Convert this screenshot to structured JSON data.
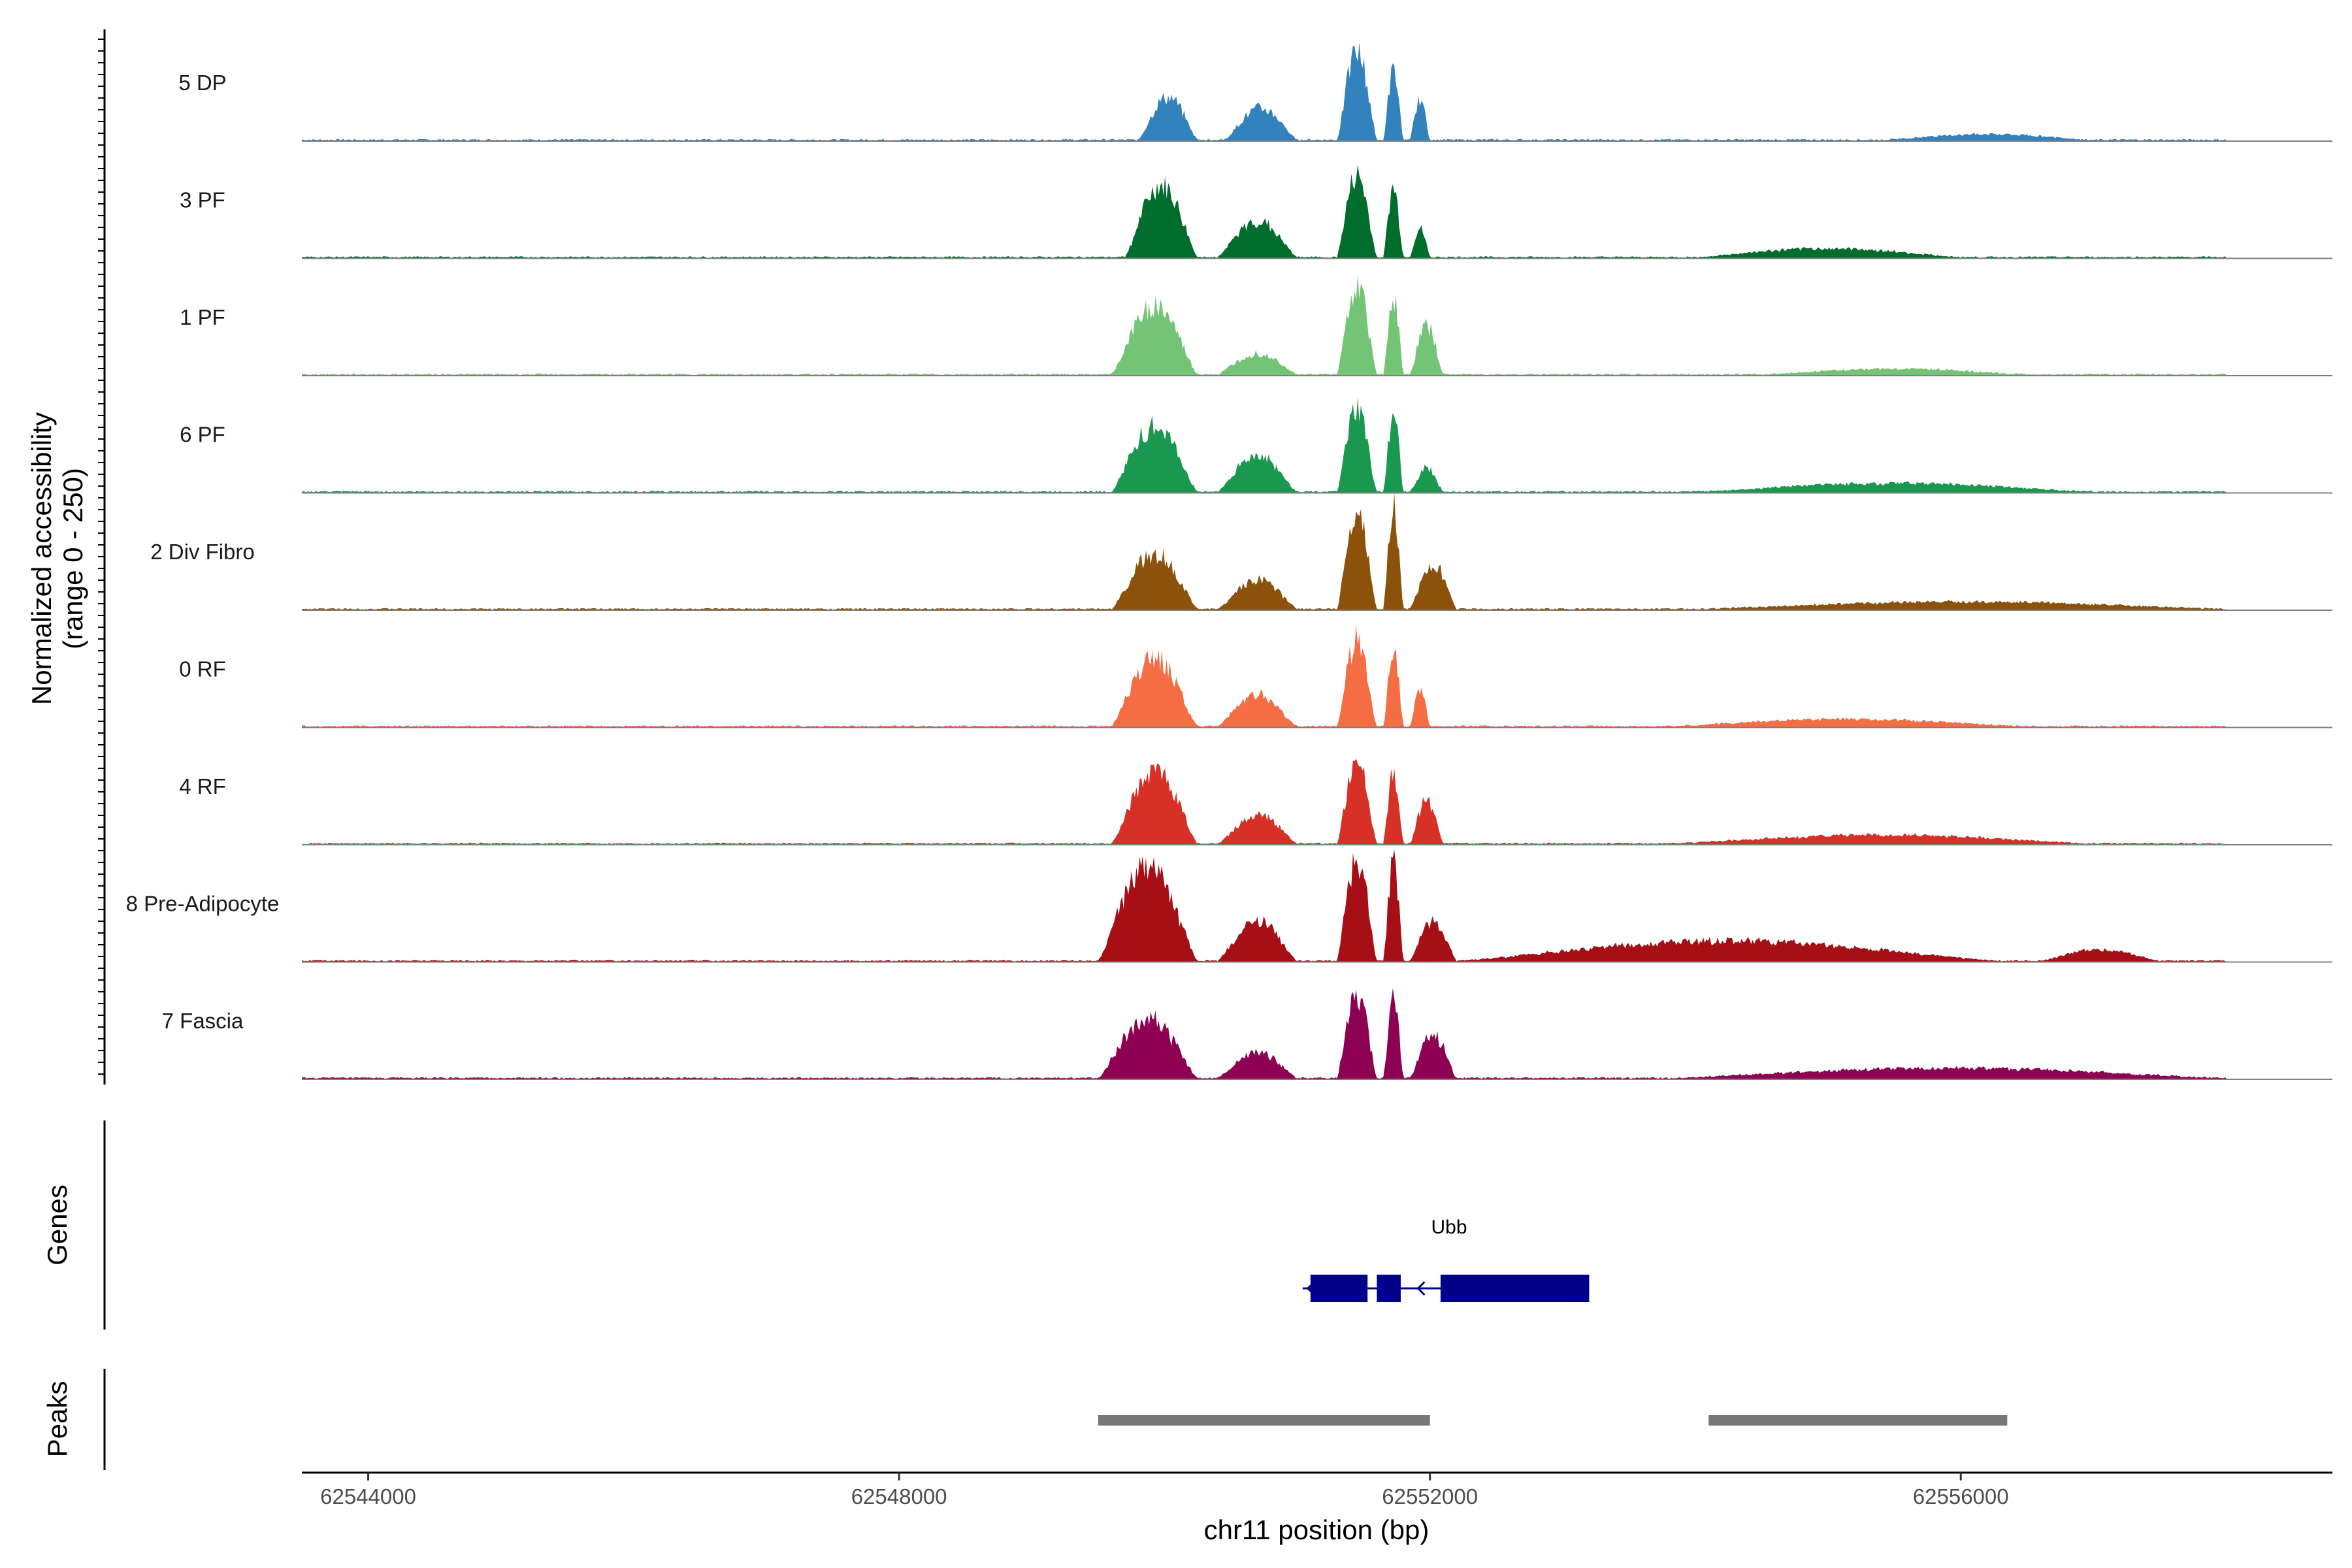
{
  "chart_data": {
    "type": "area",
    "title": "",
    "xlabel": "chr11 position (bp)",
    "ylabel": "Normalized accessibility",
    "ylabel_range": "(range 0 - 250)",
    "xlim": [
      62543500,
      62558800
    ],
    "x_ticks": [
      62544000,
      62548000,
      62552000,
      62556000
    ],
    "x_tick_labels": [
      "62544000",
      "62548000",
      "62552000",
      "62556000"
    ],
    "series": [
      {
        "name": "5 DP",
        "color": "#3182bd",
        "peaks": [
          [
            62549800,
            62550250,
            30
          ],
          [
            62550450,
            62551000,
            22
          ],
          [
            62551300,
            62551600,
            62
          ],
          [
            62551650,
            62551800,
            48
          ],
          [
            62551850,
            62552000,
            28
          ],
          [
            62555400,
            62557000,
            4
          ]
        ]
      },
      {
        "name": "3 PF",
        "color": "#006d2c",
        "peaks": [
          [
            62549700,
            62550250,
            50
          ],
          [
            62550400,
            62551000,
            25
          ],
          [
            62551300,
            62551600,
            57
          ],
          [
            62551650,
            62551800,
            48
          ],
          [
            62551850,
            62552000,
            20
          ],
          [
            62554000,
            62556000,
            6
          ]
        ]
      },
      {
        "name": "1 PF",
        "color": "#74c476",
        "peaks": [
          [
            62549600,
            62550250,
            48
          ],
          [
            62550400,
            62551000,
            15
          ],
          [
            62551300,
            62551600,
            62
          ],
          [
            62551650,
            62551800,
            54
          ],
          [
            62551850,
            62552100,
            34
          ],
          [
            62554500,
            62556500,
            4
          ]
        ]
      },
      {
        "name": "6 PF",
        "color": "#1a9850",
        "peaks": [
          [
            62549600,
            62550250,
            45
          ],
          [
            62550400,
            62551000,
            25
          ],
          [
            62551300,
            62551600,
            57
          ],
          [
            62551650,
            62551800,
            54
          ],
          [
            62551850,
            62552100,
            16
          ],
          [
            62554000,
            62557000,
            6
          ]
        ]
      },
      {
        "name": "2 Div Fibro",
        "color": "#8c510a",
        "peaks": [
          [
            62549600,
            62550250,
            38
          ],
          [
            62550400,
            62551000,
            20
          ],
          [
            62551300,
            62551600,
            68
          ],
          [
            62551650,
            62551800,
            70
          ],
          [
            62551850,
            62552200,
            32
          ],
          [
            62554000,
            62558000,
            5
          ]
        ]
      },
      {
        "name": "0 RF",
        "color": "#f46d43",
        "peaks": [
          [
            62549600,
            62550250,
            48
          ],
          [
            62550400,
            62551000,
            22
          ],
          [
            62551300,
            62551600,
            60
          ],
          [
            62551650,
            62551800,
            55
          ],
          [
            62551850,
            62552000,
            26
          ],
          [
            62553800,
            62556500,
            5
          ]
        ]
      },
      {
        "name": "4 RF",
        "color": "#d73027",
        "peaks": [
          [
            62549600,
            62550250,
            50
          ],
          [
            62550400,
            62551000,
            20
          ],
          [
            62551300,
            62551600,
            56
          ],
          [
            62551650,
            62551800,
            50
          ],
          [
            62551850,
            62552100,
            30
          ],
          [
            62553800,
            62557000,
            6
          ]
        ]
      },
      {
        "name": "8 Pre-Adipocyte",
        "color": "#a50f15",
        "peaks": [
          [
            62549500,
            62550250,
            66
          ],
          [
            62550400,
            62551000,
            28
          ],
          [
            62551300,
            62551600,
            70
          ],
          [
            62551650,
            62551800,
            68
          ],
          [
            62551850,
            62552200,
            28
          ],
          [
            62552200,
            62556300,
            14
          ],
          [
            62556600,
            62557500,
            8
          ]
        ]
      },
      {
        "name": "7 Fascia",
        "color": "#8e0152",
        "peaks": [
          [
            62549500,
            62550250,
            42
          ],
          [
            62550400,
            62551000,
            18
          ],
          [
            62551300,
            62551600,
            58
          ],
          [
            62551650,
            62551800,
            56
          ],
          [
            62551850,
            62552200,
            30
          ],
          [
            62553800,
            62558000,
            7
          ]
        ]
      }
    ],
    "genes_track": {
      "label": "Genes",
      "genes": [
        {
          "name": "Ubb",
          "strand": "-",
          "start": 62551100,
          "end": 62553200,
          "exons": [
            [
              62551100,
              62551530
            ],
            [
              62551600,
              62551780
            ],
            [
              62552080,
              62553200
            ]
          ]
        }
      ]
    },
    "peaks_track": {
      "label": "Peaks",
      "regions": [
        [
          62549500,
          62552000
        ],
        [
          62554100,
          62556350
        ]
      ],
      "color": "#777777"
    }
  }
}
